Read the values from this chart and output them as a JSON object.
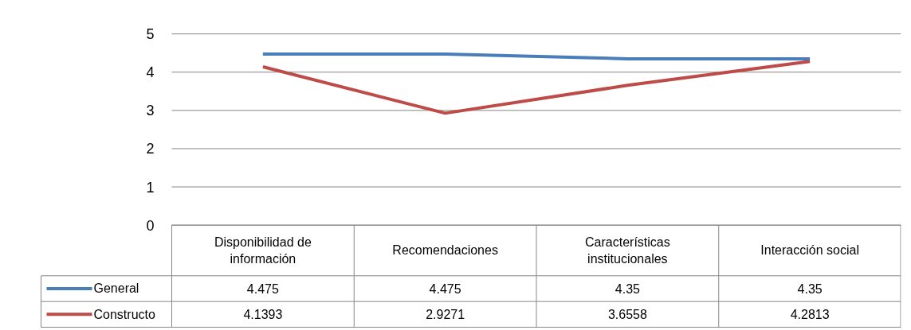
{
  "chart_data": {
    "type": "line",
    "categories": [
      "Disponibilidad de información",
      "Recomendaciones",
      "Características institucionales",
      "Interacción social"
    ],
    "series": [
      {
        "name": "General",
        "color": "#4a7ebb",
        "values": [
          4.475,
          4.475,
          4.35,
          4.35
        ]
      },
      {
        "name": "Constructo",
        "color": "#be4b48",
        "values": [
          4.1393,
          2.9271,
          3.6558,
          4.2813
        ]
      }
    ],
    "ylim": [
      0,
      5
    ],
    "yticks": [
      0,
      1,
      2,
      3,
      4,
      5
    ],
    "grid": "y",
    "legend": "bottom",
    "data_labels": true,
    "marker": "none",
    "line_style": "solid"
  }
}
